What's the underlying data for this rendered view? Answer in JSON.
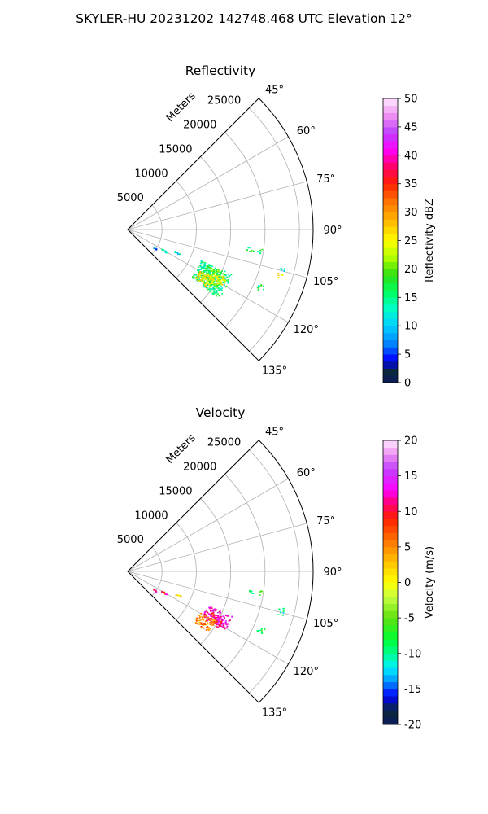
{
  "title": "SKYLER-HU  20231202  142748.468 UTC Elevation 12°",
  "chart_data": [
    {
      "type": "heatmap",
      "projection": "polar-sector",
      "title": "Reflectivity",
      "radial_axis_label": "Meters",
      "radial_ticks": [
        5000,
        10000,
        15000,
        20000,
        25000
      ],
      "radial_range": [
        0,
        27000
      ],
      "angle_range_deg": [
        45,
        135
      ],
      "angle_ticks_deg": [
        45,
        60,
        75,
        90,
        105,
        120,
        135
      ],
      "angle_tick_labels": [
        "45°",
        "60°",
        "75°",
        "90°",
        "105°",
        "120°",
        "135°"
      ],
      "grid": true,
      "colorbar": {
        "label": "Reflectivity dBZ",
        "range": [
          0,
          50
        ],
        "ticks": [
          0,
          5,
          10,
          15,
          20,
          25,
          30,
          35,
          40,
          45,
          50
        ]
      },
      "regions": [
        {
          "az": [
            113,
            127
          ],
          "range": [
            11500,
            16500
          ],
          "value": 15
        },
        {
          "az": [
            114,
            123
          ],
          "range": [
            12500,
            15500
          ],
          "value": 20
        },
        {
          "az": [
            119,
            126
          ],
          "range": [
            12000,
            14500
          ],
          "value": 26
        },
        {
          "az": [
            116,
            121
          ],
          "range": [
            14000,
            16000
          ],
          "value": 24
        },
        {
          "az": [
            112,
            115
          ],
          "range": [
            20500,
            21500
          ],
          "value": 16
        },
        {
          "az": [
            106,
            108
          ],
          "range": [
            22500,
            23500
          ],
          "value": 26
        },
        {
          "az": [
            103,
            105
          ],
          "range": [
            22800,
            23500
          ],
          "value": 14
        },
        {
          "az": [
            98,
            100
          ],
          "range": [
            17500,
            18500
          ],
          "value": 16
        },
        {
          "az": [
            98,
            100
          ],
          "range": [
            19000,
            19800
          ],
          "value": 15
        },
        {
          "az": [
            119,
            121
          ],
          "range": [
            5500,
            6500
          ],
          "value": 14
        },
        {
          "az": [
            124,
            126
          ],
          "range": [
            4500,
            5000
          ],
          "value": 6
        },
        {
          "az": [
            114,
            116
          ],
          "range": [
            7500,
            8500
          ],
          "value": 12
        }
      ]
    },
    {
      "type": "heatmap",
      "projection": "polar-sector",
      "title": "Velocity",
      "radial_axis_label": "Meters",
      "radial_ticks": [
        5000,
        10000,
        15000,
        20000,
        25000
      ],
      "radial_range": [
        0,
        27000
      ],
      "angle_range_deg": [
        45,
        135
      ],
      "angle_ticks_deg": [
        45,
        60,
        75,
        90,
        105,
        120,
        135
      ],
      "angle_tick_labels": [
        "45°",
        "60°",
        "75°",
        "90°",
        "105°",
        "120°",
        "135°"
      ],
      "grid": true,
      "colorbar": {
        "label": "Velocity (m/s)",
        "range": [
          -20,
          20
        ],
        "ticks": [
          -20,
          -15,
          -10,
          -5,
          0,
          5,
          10,
          15,
          20
        ]
      },
      "regions": [
        {
          "az": [
            113,
            121
          ],
          "range": [
            12500,
            16500
          ],
          "value": 13
        },
        {
          "az": [
            116,
            122
          ],
          "range": [
            13500,
            15500
          ],
          "value": 10
        },
        {
          "az": [
            119,
            127
          ],
          "range": [
            12000,
            14500
          ],
          "value": 5
        },
        {
          "az": [
            112,
            115
          ],
          "range": [
            20500,
            21500
          ],
          "value": -8
        },
        {
          "az": [
            103,
            106
          ],
          "range": [
            22500,
            23500
          ],
          "value": -10
        },
        {
          "az": [
            98,
            100
          ],
          "range": [
            17500,
            18500
          ],
          "value": -8
        },
        {
          "az": [
            98,
            100
          ],
          "range": [
            19000,
            19800
          ],
          "value": -6
        },
        {
          "az": [
            119,
            121
          ],
          "range": [
            5500,
            6500
          ],
          "value": 10
        },
        {
          "az": [
            124,
            126
          ],
          "range": [
            4500,
            5000
          ],
          "value": 12
        },
        {
          "az": [
            114,
            116
          ],
          "range": [
            7500,
            8500
          ],
          "value": 2
        }
      ]
    }
  ],
  "colors": {
    "grid": "#b0b0b0",
    "boundary": "#000000"
  }
}
